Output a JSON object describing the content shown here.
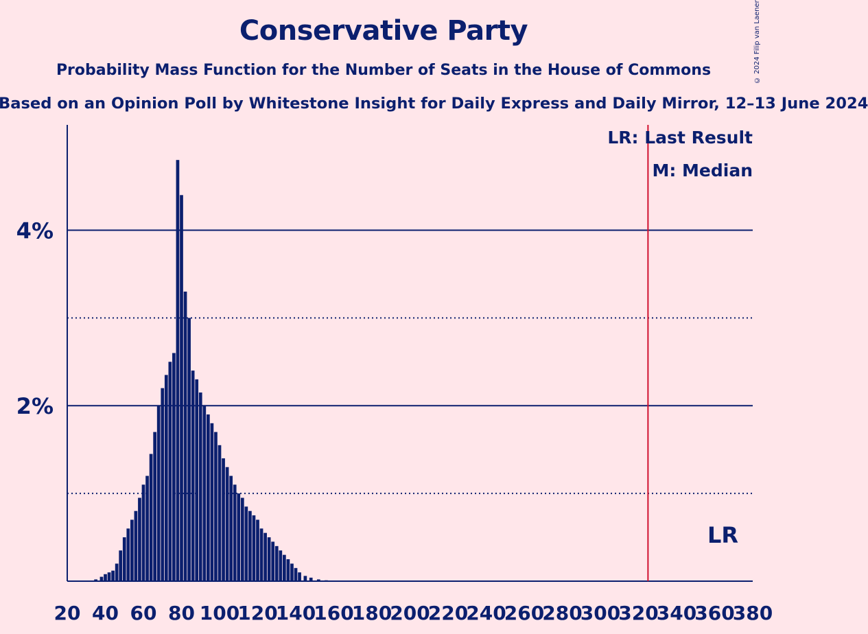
{
  "title": "Conservative Party",
  "subtitle": "Probability Mass Function for the Number of Seats in the House of Commons",
  "subsubtitle": "Based on an Opinion Poll by Whitestone Insight for Daily Express and Daily Mirror, 12–13 June 2024",
  "copyright": "© 2024 Filip van Laenen",
  "legend": {
    "last_result": "LR: Last Result",
    "median": "M: Median"
  },
  "lr_marker_label": "LR",
  "colors": {
    "background": "#ffe6ea",
    "text": "#0b1f6e",
    "bars": "#0b1f6e",
    "last_result_line": "#d0102e",
    "gridlines": "#0b1f6e"
  },
  "chart_data": {
    "type": "bar",
    "title": "Conservative Party",
    "xlabel": "",
    "ylabel": "",
    "xlim": [
      20,
      380
    ],
    "ylim": [
      0,
      5.2
    ],
    "x_ticks": [
      20,
      40,
      60,
      80,
      100,
      120,
      140,
      160,
      180,
      200,
      220,
      240,
      260,
      280,
      300,
      320,
      340,
      360,
      380
    ],
    "y_ticks": [
      {
        "value": 2,
        "label": "2%"
      },
      {
        "value": 4,
        "label": "4%"
      }
    ],
    "y_ticks_unlabeled": [
      1,
      3
    ],
    "last_result": 325,
    "x": [
      35,
      38,
      40,
      42,
      44,
      46,
      48,
      50,
      52,
      54,
      56,
      58,
      60,
      62,
      64,
      66,
      68,
      70,
      72,
      74,
      76,
      78,
      80,
      82,
      84,
      86,
      88,
      90,
      92,
      94,
      96,
      98,
      100,
      102,
      104,
      106,
      108,
      110,
      112,
      114,
      116,
      118,
      120,
      122,
      124,
      126,
      128,
      130,
      132,
      134,
      136,
      138,
      140,
      142,
      145,
      148,
      152,
      156
    ],
    "values": [
      0.02,
      0.05,
      0.08,
      0.1,
      0.12,
      0.2,
      0.35,
      0.5,
      0.6,
      0.7,
      0.8,
      0.95,
      1.1,
      1.2,
      1.45,
      1.7,
      2.0,
      2.2,
      2.35,
      2.5,
      2.6,
      4.8,
      4.4,
      3.3,
      3.0,
      2.4,
      2.3,
      2.15,
      2.0,
      1.9,
      1.8,
      1.7,
      1.55,
      1.4,
      1.3,
      1.2,
      1.1,
      1.0,
      0.95,
      0.85,
      0.8,
      0.75,
      0.7,
      0.6,
      0.55,
      0.5,
      0.45,
      0.4,
      0.35,
      0.3,
      0.25,
      0.2,
      0.15,
      0.1,
      0.06,
      0.04,
      0.02,
      0.01
    ]
  }
}
